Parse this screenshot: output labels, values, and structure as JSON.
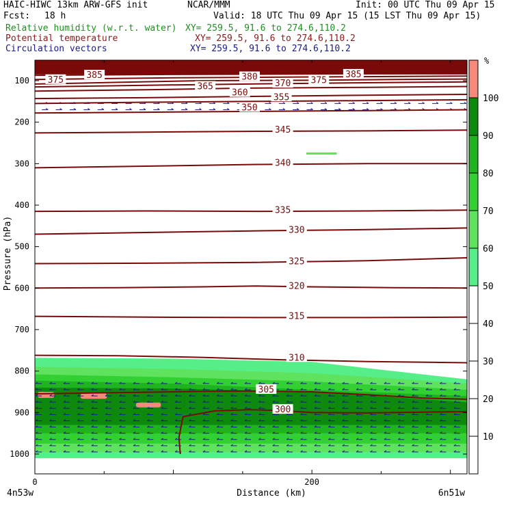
{
  "header": {
    "title_left": "HAIC-HIWC 13km ARW-GFS init",
    "title_center": "NCAR/MMM",
    "init": "Init: 00 UTC Thu 09 Apr 15",
    "fcst_label": "Fcst:",
    "fcst_value": "18 h",
    "valid": "Valid: 18 UTC Thu 09 Apr 15 (15 LST Thu 09 Apr 15)",
    "fields": [
      {
        "name": "Relative humidity (w.r.t. water)",
        "xy": "XY= 259.5, 91.6 to 274.6,110.2",
        "color": "#1f8f1f"
      },
      {
        "name": "Potential temperature",
        "xy": "XY= 259.5, 91.6 to 274.6,110.2",
        "color": "#8b1a1a"
      },
      {
        "name": "Circulation vectors",
        "xy": "XY= 259.5, 91.6 to 274.6,110.2",
        "color": "#1a1a8b"
      }
    ]
  },
  "chart_data": {
    "type": "heatmap",
    "description_fields": [
      "relative_humidity_fill",
      "potential_temperature_contours",
      "circulation_vectors"
    ],
    "xlabel": "Distance (km)",
    "ylabel": "Pressure (hPa)",
    "xlim": [
      0,
      312
    ],
    "ylim": [
      1020,
      50
    ],
    "x_ticks": [
      0,
      200
    ],
    "y_ticks": [
      100,
      200,
      300,
      400,
      500,
      600,
      700,
      800,
      900,
      1000
    ],
    "x_endpoints": {
      "left": "4n53w",
      "right": "6n51w"
    },
    "colorbar": {
      "unit": "%",
      "levels": [
        10,
        20,
        30,
        40,
        50,
        60,
        70,
        80,
        90,
        100
      ],
      "bins": [
        {
          "from": 50,
          "to": 60,
          "color": "#55ee88"
        },
        {
          "from": 60,
          "to": 70,
          "color": "#5fe35f"
        },
        {
          "from": 70,
          "to": 80,
          "color": "#33d033"
        },
        {
          "from": 80,
          "to": 90,
          "color": "#1fb41f"
        },
        {
          "from": 90,
          "to": 100,
          "color": "#0d8a0d"
        },
        {
          "from": 100,
          "to": 110,
          "color": "#f58a7a"
        }
      ]
    },
    "theta_contours": [
      {
        "value": 300,
        "points": [
          [
            105,
            1000
          ],
          [
            104,
            960
          ],
          [
            107,
            910
          ],
          [
            130,
            896
          ],
          [
            155,
            893
          ],
          [
            175,
            895
          ],
          [
            200,
            900
          ],
          [
            240,
            901
          ],
          [
            280,
            899
          ],
          [
            312,
            898
          ]
        ]
      },
      {
        "value": 305,
        "points": [
          [
            0,
            855
          ],
          [
            40,
            853
          ],
          [
            80,
            851
          ],
          [
            120,
            849
          ],
          [
            160,
            848
          ],
          [
            200,
            850
          ],
          [
            240,
            857
          ],
          [
            280,
            865
          ],
          [
            312,
            868
          ]
        ]
      },
      {
        "value": 310,
        "points": [
          [
            0,
            762
          ],
          [
            60,
            763
          ],
          [
            120,
            767
          ],
          [
            180,
            773
          ],
          [
            240,
            777
          ],
          [
            312,
            780
          ]
        ]
      },
      {
        "value": 315,
        "points": [
          [
            0,
            668
          ],
          [
            80,
            670
          ],
          [
            160,
            671
          ],
          [
            240,
            671
          ],
          [
            312,
            670
          ]
        ]
      },
      {
        "value": 320,
        "points": [
          [
            0,
            600
          ],
          [
            60,
            599
          ],
          [
            120,
            597
          ],
          [
            160,
            595
          ],
          [
            200,
            597
          ],
          [
            260,
            599
          ],
          [
            312,
            600
          ]
        ]
      },
      {
        "value": 325,
        "points": [
          [
            0,
            541
          ],
          [
            80,
            540
          ],
          [
            160,
            538
          ],
          [
            240,
            534
          ],
          [
            312,
            527
          ]
        ]
      },
      {
        "value": 330,
        "points": [
          [
            0,
            470
          ],
          [
            80,
            466
          ],
          [
            160,
            462
          ],
          [
            240,
            459
          ],
          [
            312,
            455
          ]
        ]
      },
      {
        "value": 335,
        "points": [
          [
            0,
            415
          ],
          [
            80,
            414
          ],
          [
            160,
            415
          ],
          [
            240,
            414
          ],
          [
            312,
            412
          ]
        ]
      },
      {
        "value": 340,
        "points": [
          [
            0,
            310
          ],
          [
            80,
            306
          ],
          [
            160,
            302
          ],
          [
            240,
            300
          ],
          [
            312,
            300
          ]
        ]
      },
      {
        "value": 345,
        "points": [
          [
            0,
            226
          ],
          [
            80,
            224
          ],
          [
            160,
            222
          ],
          [
            240,
            221
          ],
          [
            312,
            219
          ]
        ]
      },
      {
        "value": 350,
        "points": [
          [
            0,
            178
          ],
          [
            80,
            176
          ],
          [
            160,
            174
          ],
          [
            240,
            172
          ],
          [
            312,
            170
          ]
        ]
      },
      {
        "value": 355,
        "points": [
          [
            0,
            155
          ],
          [
            80,
            152
          ],
          [
            160,
            150
          ],
          [
            240,
            148
          ],
          [
            312,
            146
          ]
        ]
      },
      {
        "value": 360,
        "points": [
          [
            0,
            143
          ],
          [
            80,
            141
          ],
          [
            150,
            138
          ],
          [
            240,
            135
          ],
          [
            312,
            133
          ]
        ]
      },
      {
        "value": 365,
        "points": [
          [
            0,
            125
          ],
          [
            80,
            122
          ],
          [
            150,
            118
          ],
          [
            240,
            116
          ],
          [
            312,
            114
          ]
        ]
      },
      {
        "value": 370,
        "points": [
          [
            0,
            115
          ],
          [
            80,
            111
          ],
          [
            180,
            107
          ],
          [
            240,
            105
          ],
          [
            312,
            103
          ]
        ]
      },
      {
        "value": 375,
        "points": [
          [
            0,
            108
          ],
          [
            60,
            104
          ],
          [
            120,
            100
          ],
          [
            200,
            99
          ],
          [
            260,
            97
          ],
          [
            312,
            96
          ]
        ]
      },
      {
        "value": 380,
        "points": [
          [
            0,
            97
          ],
          [
            100,
            93
          ],
          [
            200,
            91
          ],
          [
            312,
            89
          ]
        ]
      },
      {
        "value": 385,
        "points": [
          [
            0,
            87
          ],
          [
            100,
            85
          ],
          [
            200,
            84
          ],
          [
            312,
            82
          ]
        ]
      }
    ],
    "theta_labels": [
      {
        "text": "375",
        "x": 15,
        "p": 98
      },
      {
        "text": "385",
        "x": 43,
        "p": 87
      },
      {
        "text": "380",
        "x": 155,
        "p": 91
      },
      {
        "text": "385",
        "x": 230,
        "p": 85
      },
      {
        "text": "370",
        "x": 179,
        "p": 107
      },
      {
        "text": "375",
        "x": 205,
        "p": 99
      },
      {
        "text": "365",
        "x": 123,
        "p": 114
      },
      {
        "text": "360",
        "x": 148,
        "p": 129
      },
      {
        "text": "355",
        "x": 178,
        "p": 140
      },
      {
        "text": "350",
        "x": 155,
        "p": 165
      },
      {
        "text": "345",
        "x": 179,
        "p": 219
      },
      {
        "text": "340",
        "x": 179,
        "p": 299
      },
      {
        "text": "335",
        "x": 179,
        "p": 412
      },
      {
        "text": "330",
        "x": 189,
        "p": 460
      },
      {
        "text": "325",
        "x": 189,
        "p": 536
      },
      {
        "text": "320",
        "x": 189,
        "p": 595
      },
      {
        "text": "315",
        "x": 189,
        "p": 668
      },
      {
        "text": "310",
        "x": 189,
        "p": 768
      },
      {
        "text": "305",
        "x": 167,
        "p": 845
      },
      {
        "text": "300",
        "x": 179,
        "p": 893
      }
    ],
    "rh_layers": [
      {
        "level": 50,
        "top": [
          [
            0,
            768
          ],
          [
            100,
            770
          ],
          [
            200,
            778
          ],
          [
            312,
            820
          ]
        ],
        "bottom_p": 1010
      },
      {
        "level": 60,
        "top": [
          [
            0,
            790
          ],
          [
            100,
            795
          ],
          [
            200,
            805
          ],
          [
            312,
            830
          ]
        ],
        "bottom_p": 995
      },
      {
        "level": 70,
        "top": [
          [
            0,
            808
          ],
          [
            100,
            815
          ],
          [
            200,
            825
          ],
          [
            312,
            845
          ]
        ],
        "bottom_p": 975
      },
      {
        "level": 80,
        "top": [
          [
            0,
            823
          ],
          [
            100,
            830
          ],
          [
            200,
            845
          ],
          [
            312,
            860
          ]
        ],
        "bottom_p": 950
      },
      {
        "level": 90,
        "top": [
          [
            0,
            840
          ],
          [
            100,
            842
          ],
          [
            200,
            850
          ],
          [
            312,
            875
          ]
        ],
        "bottom_p": 930
      }
    ],
    "rh_patches_100": [
      {
        "x": 2,
        "p": 850,
        "w": 12,
        "h": 8
      },
      {
        "x": 33,
        "p": 854,
        "w": 19,
        "h": 6
      },
      {
        "x": 73,
        "p": 876,
        "w": 18,
        "h": 5
      }
    ],
    "rh_patch_small": {
      "x": 196,
      "p": 273,
      "w": 22,
      "h": 4,
      "level": 60
    },
    "vectors": {
      "upper_zone": {
        "p_top": 150,
        "p_bottom": 180,
        "u": 9
      },
      "lower_zone": {
        "p_top": 830,
        "p_bottom": 1000,
        "u": -9
      },
      "mid_zone": {
        "u": 0
      }
    }
  }
}
